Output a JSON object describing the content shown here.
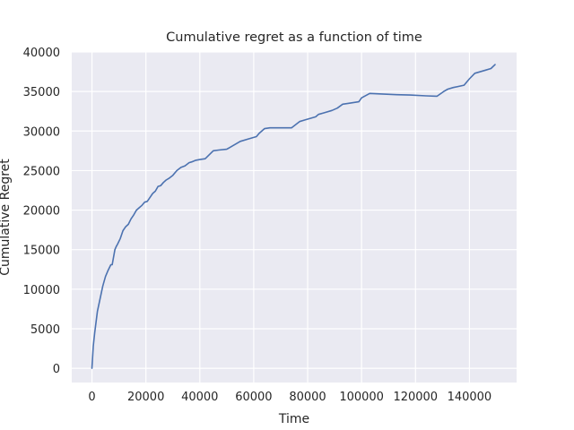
{
  "chart_data": {
    "type": "line",
    "title": "Cumulative regret as a function of time",
    "xlabel": "Time",
    "ylabel": "Cumulative Regret",
    "xlim": [
      -7500,
      157500
    ],
    "ylim": [
      -1800,
      40000
    ],
    "xticks": [
      0,
      20000,
      40000,
      60000,
      80000,
      100000,
      120000,
      140000
    ],
    "yticks": [
      0,
      5000,
      10000,
      15000,
      20000,
      25000,
      30000,
      35000,
      40000
    ],
    "grid": true,
    "legend": "none",
    "background": "#eaeaf2",
    "grid_color": "#ffffff",
    "line_color": "#4c72b0",
    "series": [
      {
        "x": [
          0,
          500,
          1000,
          2000,
          3000,
          4000,
          5000,
          6000,
          7000,
          7500,
          8500,
          9000,
          9500,
          10500,
          11500,
          12500,
          13500,
          14500,
          15500,
          16500,
          17500,
          18500,
          19500,
          20500,
          21500,
          22500,
          23500,
          24500,
          25500,
          26500,
          27500,
          28500,
          30000,
          31500,
          33000,
          34500,
          36000,
          37000,
          38500,
          40000,
          42000,
          45000,
          47000,
          50000,
          52000,
          55000,
          58000,
          61000,
          62000,
          64000,
          66000,
          70000,
          74000,
          77000,
          79000,
          83000,
          84000,
          86000,
          89000,
          91000,
          93000,
          95000,
          99000,
          100000,
          103000,
          113000,
          118000,
          124000,
          128000,
          130500,
          132000,
          134000,
          138000,
          140000,
          142000,
          146000,
          148000,
          149500
        ],
        "y": [
          0,
          2800,
          4500,
          7200,
          8800,
          10400,
          11600,
          12400,
          13100,
          13100,
          15000,
          15400,
          15700,
          16400,
          17400,
          17900,
          18200,
          18900,
          19400,
          20000,
          20300,
          20600,
          21000,
          21100,
          21600,
          22100,
          22400,
          23000,
          23100,
          23500,
          23800,
          24000,
          24400,
          25000,
          25400,
          25600,
          26000,
          26100,
          26300,
          26400,
          26500,
          27500,
          27600,
          27700,
          28100,
          28700,
          29000,
          29300,
          29700,
          30300,
          30400,
          30400,
          30400,
          31200,
          31400,
          31800,
          32100,
          32300,
          32600,
          32900,
          33400,
          33500,
          33700,
          34200,
          34750,
          34600,
          34550,
          34450,
          34400,
          35000,
          35300,
          35500,
          35800,
          36600,
          37300,
          37700,
          37900,
          38400
        ]
      }
    ]
  }
}
